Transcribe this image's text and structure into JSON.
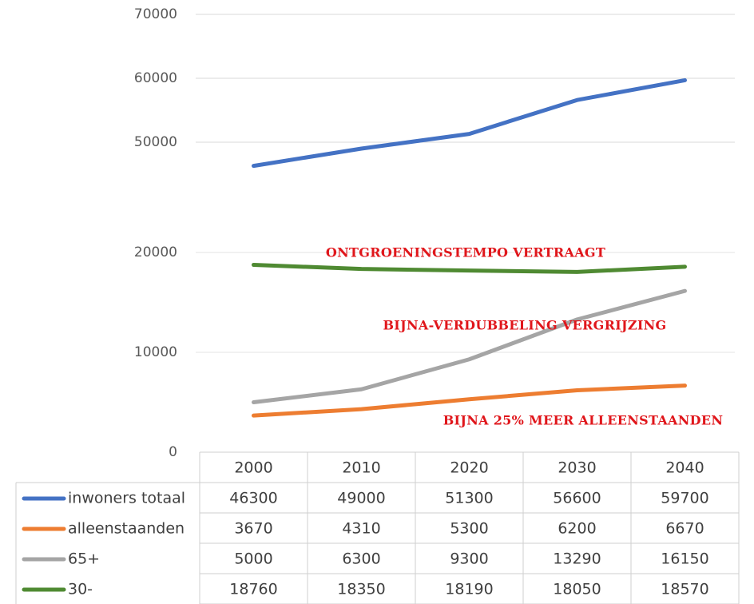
{
  "chart_data": {
    "type": "line",
    "categories": [
      "2000",
      "2010",
      "2020",
      "2030",
      "2040"
    ],
    "series": [
      {
        "name": "inwoners totaal",
        "color": "#4472c4",
        "values": [
          46300,
          49000,
          51300,
          56600,
          59700
        ],
        "axis": "y2"
      },
      {
        "name": "alleenstaanden",
        "color": "#ed7d31",
        "values": [
          3670,
          4310,
          5300,
          6200,
          6670
        ]
      },
      {
        "name": "65+",
        "color": "#a5a5a5",
        "values": [
          5000,
          6300,
          9300,
          13290,
          16150
        ]
      },
      {
        "name": "30-",
        "color": "#4f8a32",
        "values": [
          18760,
          18350,
          18190,
          18050,
          18570
        ]
      }
    ],
    "ylim": [
      0,
      20000
    ],
    "yticks": [
      0,
      10000,
      20000
    ],
    "y2lim": [
      44000,
      70000
    ],
    "y2ticks": [
      50000,
      60000,
      70000
    ],
    "grid": true,
    "annotations": [
      "ONTGROENINGSTEMPO VERTRAAGT",
      "BIJNA-VERDUBBELING VERGRIJZING",
      "BIJNA 25% MEER ALLEENSTAANDEN"
    ]
  }
}
